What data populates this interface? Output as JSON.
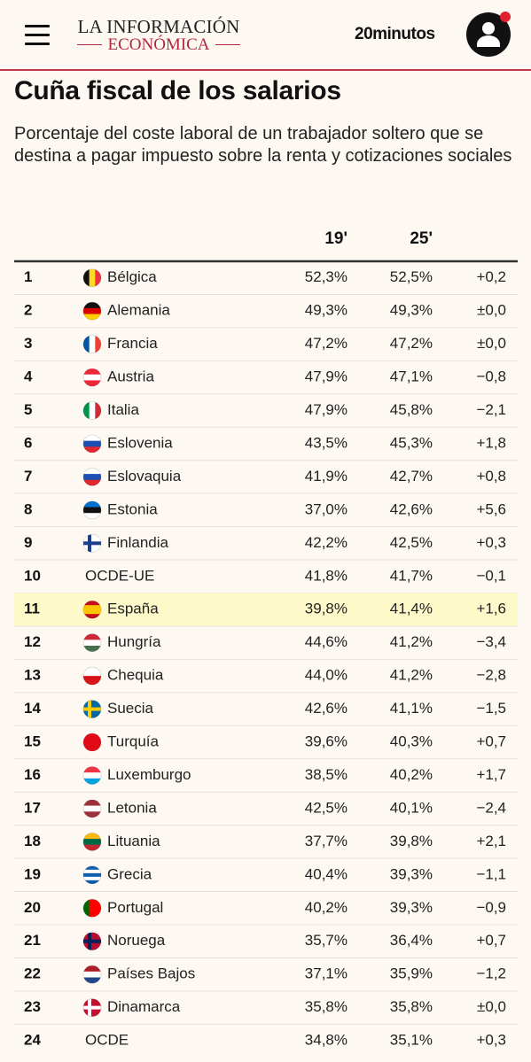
{
  "header": {
    "logo_top": "LA INFORMACIÓN",
    "logo_bottom": "ECONÓMICA",
    "partner": "20minutos"
  },
  "title": "Cuña fiscal de los salarios",
  "subtitle": "Porcentaje del coste laboral de un trabajador soltero que se destina a pagar impuesto sobre la renta y cotizaciones sociales",
  "table": {
    "columns": [
      "19'",
      "25'"
    ],
    "rows": [
      [
        1,
        "Bélgica",
        "52,3%",
        "52,5%",
        "+0,2"
      ],
      [
        2,
        "Alemania",
        "49,3%",
        "49,3%",
        "±0,0"
      ],
      [
        3,
        "Francia",
        "47,2%",
        "47,2%",
        "±0,0"
      ],
      [
        4,
        "Austria",
        "47,9%",
        "47,1%",
        "−0,8"
      ],
      [
        5,
        "Italia",
        "47,9%",
        "45,8%",
        "−2,1"
      ],
      [
        6,
        "Eslovenia",
        "43,5%",
        "45,3%",
        "+1,8"
      ],
      [
        7,
        "Eslovaquia",
        "41,9%",
        "42,7%",
        "+0,8"
      ],
      [
        8,
        "Estonia",
        "37,0%",
        "42,6%",
        "+5,6"
      ],
      [
        9,
        "Finlandia",
        "42,2%",
        "42,5%",
        "+0,3"
      ],
      [
        10,
        "OCDE-UE",
        "41,8%",
        "41,7%",
        "−0,1"
      ],
      [
        11,
        "España",
        "39,8%",
        "41,4%",
        "+1,6"
      ],
      [
        12,
        "Hungría",
        "44,6%",
        "41,2%",
        "−3,4"
      ],
      [
        13,
        "Chequia",
        "44,0%",
        "41,2%",
        "−2,8"
      ],
      [
        14,
        "Suecia",
        "42,6%",
        "41,1%",
        "−1,5"
      ],
      [
        15,
        "Turquía",
        "39,6%",
        "40,3%",
        "+0,7"
      ],
      [
        16,
        "Luxemburgo",
        "38,5%",
        "40,2%",
        "+1,7"
      ],
      [
        17,
        "Letonia",
        "42,5%",
        "40,1%",
        "−2,4"
      ],
      [
        18,
        "Lituania",
        "37,7%",
        "39,8%",
        "+2,1"
      ],
      [
        19,
        "Grecia",
        "40,4%",
        "39,3%",
        "−1,1"
      ],
      [
        20,
        "Portugal",
        "40,2%",
        "39,3%",
        "−0,9"
      ],
      [
        21,
        "Noruega",
        "35,7%",
        "36,4%",
        "+0,7"
      ],
      [
        22,
        "Países Bajos",
        "37,1%",
        "35,9%",
        "−1,2"
      ],
      [
        23,
        "Dinamarca",
        "35,8%",
        "35,8%",
        "±0,0"
      ],
      [
        24,
        "OCDE",
        "34,8%",
        "35,1%",
        "+0,3"
      ]
    ]
  }
}
